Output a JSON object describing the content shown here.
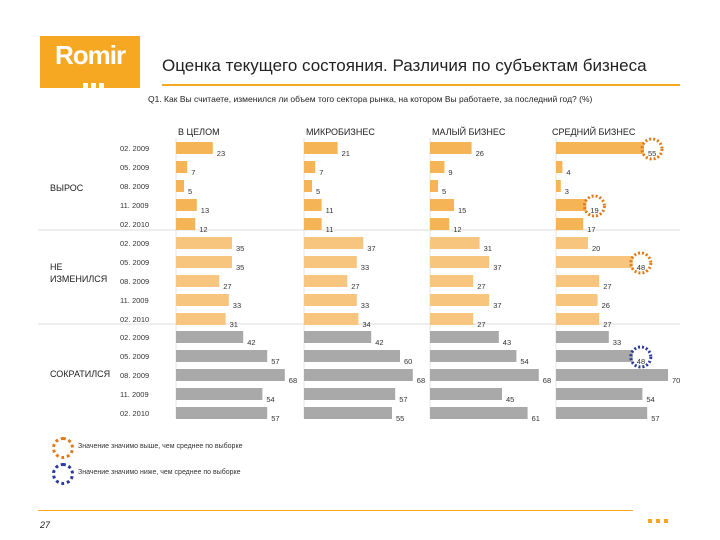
{
  "logo": {
    "text": "Romir"
  },
  "header": {
    "title": "Оценка текущего состояния. Различия по субъектам бизнеса"
  },
  "question": "Q1. Как Вы считаете, изменился ли объем того сектора рынка, на котором Вы работаете, за последний год? (%)",
  "legend": {
    "higher": "Значение значимо выше, чем среднее по выборке",
    "lower": "Значение значимо ниже, чем среднее по выборке"
  },
  "colors": {
    "accent": "#f7a823",
    "growth_bar": "#f5b556",
    "same_bar": "#f8c57e",
    "decline_bar": "#a9a9a9",
    "higher_marker": "#e07b1a",
    "lower_marker": "#2a3a9e"
  },
  "page_number": "27",
  "chart_data": {
    "type": "bar",
    "orientation": "horizontal",
    "columns": [
      "В ЦЕЛОМ",
      "МИКРОБИЗНЕС",
      "МАЛЫЙ БИЗНЕС",
      "СРЕДНИЙ БИЗНЕС"
    ],
    "periods": [
      "02. 2009",
      "05. 2009",
      "08. 2009",
      "11. 2009",
      "02. 2010"
    ],
    "groups": [
      {
        "name": "ВЫРОС",
        "values": [
          [
            23,
            7,
            5,
            13,
            12
          ],
          [
            21,
            7,
            5,
            11,
            11
          ],
          [
            26,
            9,
            5,
            15,
            12
          ],
          [
            55,
            4,
            3,
            19,
            17
          ]
        ],
        "markers": [
          {
            "column": 3,
            "row": 0,
            "type": "higher"
          },
          {
            "column": 3,
            "row": 3,
            "type": "higher"
          }
        ]
      },
      {
        "name": "НЕ ИЗМЕНИЛСЯ",
        "values": [
          [
            35,
            35,
            27,
            33,
            31
          ],
          [
            37,
            33,
            27,
            33,
            34
          ],
          [
            31,
            37,
            27,
            37,
            27
          ],
          [
            20,
            48,
            27,
            26,
            27
          ]
        ],
        "markers": [
          {
            "column": 3,
            "row": 1,
            "type": "higher"
          }
        ]
      },
      {
        "name": "СОКРАТИЛСЯ",
        "values": [
          [
            42,
            57,
            68,
            54,
            57
          ],
          [
            42,
            60,
            68,
            57,
            55
          ],
          [
            43,
            54,
            68,
            45,
            61
          ],
          [
            33,
            48,
            70,
            54,
            57
          ]
        ],
        "markers": [
          {
            "column": 3,
            "row": 1,
            "type": "lower"
          }
        ]
      }
    ]
  }
}
